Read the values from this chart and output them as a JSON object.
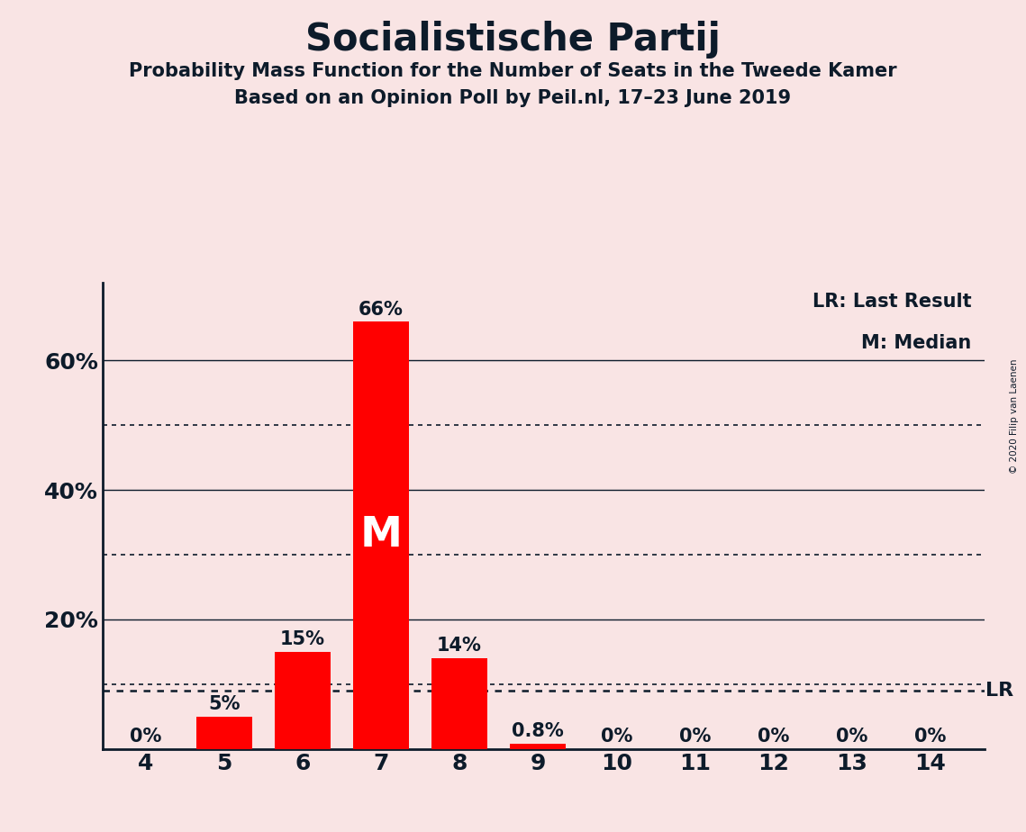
{
  "title": "Socialistische Partij",
  "subtitle1": "Probability Mass Function for the Number of Seats in the Tweede Kamer",
  "subtitle2": "Based on an Opinion Poll by Peil.nl, 17–23 June 2019",
  "copyright": "© 2020 Filip van Laenen",
  "legend_lr": "LR: Last Result",
  "legend_m": "M: Median",
  "categories": [
    4,
    5,
    6,
    7,
    8,
    9,
    10,
    11,
    12,
    13,
    14
  ],
  "values": [
    0.0,
    5.0,
    15.0,
    66.0,
    14.0,
    0.8,
    0.0,
    0.0,
    0.0,
    0.0,
    0.0
  ],
  "labels": [
    "0%",
    "5%",
    "15%",
    "66%",
    "14%",
    "0.8%",
    "0%",
    "0%",
    "0%",
    "0%",
    "0%"
  ],
  "bar_color": "#FF0000",
  "background_color": "#f9e4e4",
  "text_color": "#0d1b2a",
  "median_seat": 7,
  "lr_value": 9.0,
  "ylim": [
    0,
    72
  ],
  "ytick_majors": [
    0,
    20,
    40,
    60
  ],
  "ytick_major_labels": [
    "",
    "20%",
    "40%",
    "60%"
  ],
  "ytick_minors_dotted": [
    10,
    30,
    50
  ],
  "bar_width": 0.72
}
